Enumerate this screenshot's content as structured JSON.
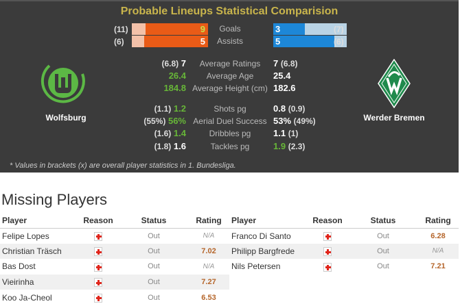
{
  "title": "Probable Lineups Statistical Comparision",
  "colors": {
    "home_bar": "#e95b17",
    "away_bar": "#1d87d7",
    "highlight": "#67b638",
    "title": "#c9b54c",
    "rating": "#b5652a"
  },
  "home": {
    "name": "Wolfsburg",
    "logo": "wolfsburg-logo"
  },
  "away": {
    "name": "Werder Bremen",
    "logo": "werder-bremen-logo"
  },
  "bars": [
    {
      "label": "Goals",
      "home": "9",
      "home_overall": "(11)",
      "away": "3",
      "away_overall": "(7)",
      "home_val": 9,
      "home_max": 11,
      "away_val": 3,
      "away_max": 7
    },
    {
      "label": "Assists",
      "home": "5",
      "home_overall": "(6)",
      "away": "5",
      "away_overall": "(6)",
      "home_val": 5,
      "home_max": 6,
      "away_val": 5,
      "away_max": 6
    }
  ],
  "stats": [
    {
      "label": "Average Ratings",
      "home_overall": "(6.8)",
      "home": "7",
      "away": "7",
      "away_overall": "(6.8)",
      "better": ""
    },
    {
      "label": "Average Age",
      "home_overall": "",
      "home": "26.4",
      "away": "25.4",
      "away_overall": "",
      "better": "home"
    },
    {
      "label": "Average Height (cm)",
      "home_overall": "",
      "home": "184.8",
      "away": "182.6",
      "away_overall": "",
      "better": "home"
    },
    {
      "label": "Shots pg",
      "home_overall": "(1.1)",
      "home": "1.2",
      "away": "0.8",
      "away_overall": "(0.9)",
      "better": "home"
    },
    {
      "label": "Aerial Duel Success",
      "home_overall": "(55%)",
      "home": "56%",
      "away": "53%",
      "away_overall": "(49%)",
      "better": "home"
    },
    {
      "label": "Dribbles pg",
      "home_overall": "(1.6)",
      "home": "1.4",
      "away": "1.1",
      "away_overall": "(1)",
      "better": "home"
    },
    {
      "label": "Tackles pg",
      "home_overall": "(1.8)",
      "home": "1.6",
      "away": "1.9",
      "away_overall": "(2.3)",
      "better": "away"
    }
  ],
  "footnote": "* Values in brackets (x) are overall player statistics in 1. Bundesliga.",
  "missing": {
    "title": "Missing Players",
    "headers": [
      "Player",
      "Reason",
      "Status",
      "Rating"
    ],
    "home": [
      {
        "player": "Felipe Lopes",
        "reason": "injury-icon",
        "status": "Out",
        "rating": "N/A"
      },
      {
        "player": "Christian Träsch",
        "reason": "injury-icon",
        "status": "Out",
        "rating": "7.02"
      },
      {
        "player": "Bas Dost",
        "reason": "injury-icon",
        "status": "Out",
        "rating": "N/A"
      },
      {
        "player": "Vieirinha",
        "reason": "injury-icon",
        "status": "Out",
        "rating": "7.27"
      },
      {
        "player": "Koo Ja-Cheol",
        "reason": "injury-icon",
        "status": "Out",
        "rating": "6.53"
      }
    ],
    "away": [
      {
        "player": "Franco Di Santo",
        "reason": "injury-icon",
        "status": "Out",
        "rating": "6.28"
      },
      {
        "player": "Philipp Bargfrede",
        "reason": "injury-icon",
        "status": "Out",
        "rating": "N/A"
      },
      {
        "player": "Nils Petersen",
        "reason": "injury-icon",
        "status": "Out",
        "rating": "7.21"
      }
    ]
  }
}
